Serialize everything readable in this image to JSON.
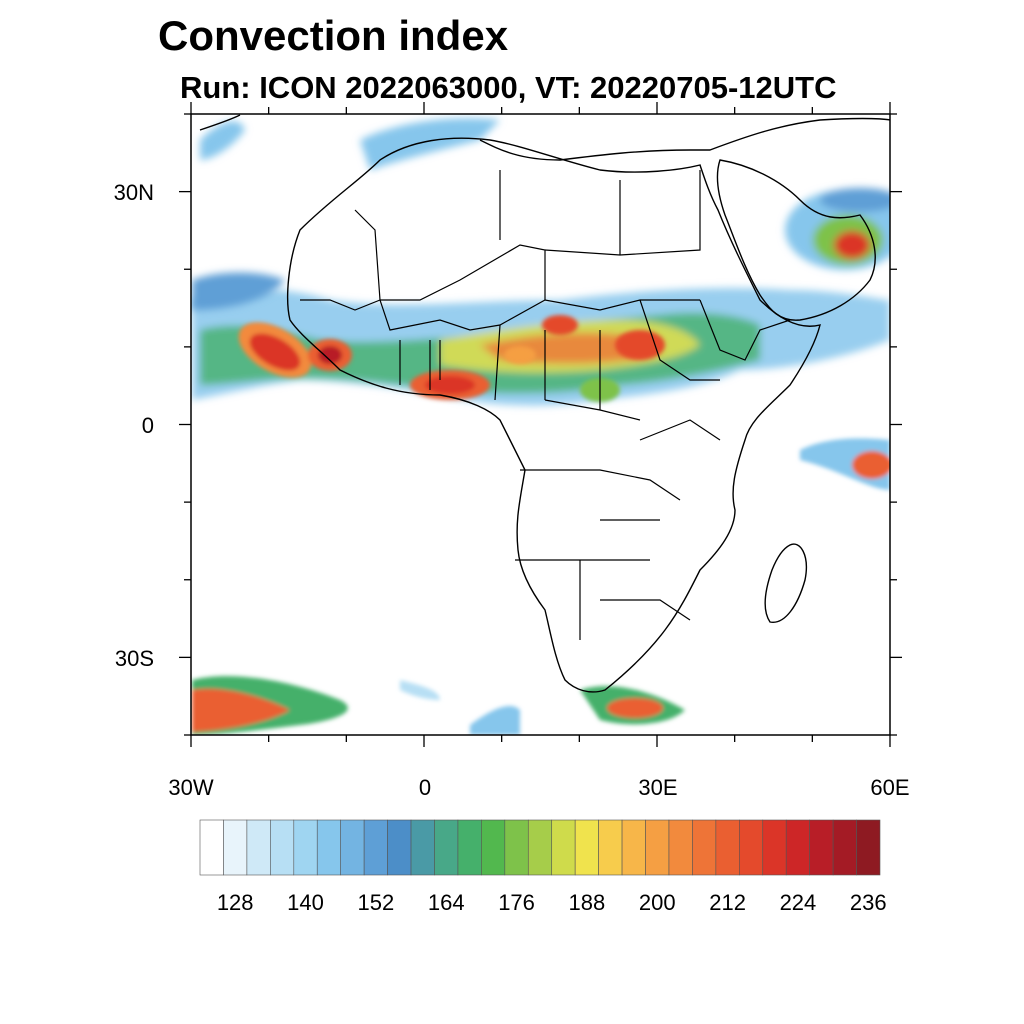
{
  "title": "Convection index",
  "subtitle": "Run: ICON 2022063000,  VT: 20220705-12UTC",
  "axes": {
    "y_labels": [
      "30N",
      "0",
      "30S"
    ],
    "x_labels": [
      "30W",
      "0",
      "30E",
      "60E"
    ],
    "lon_range": [
      -30,
      60
    ],
    "lat_range": [
      -40,
      40
    ]
  },
  "colorbar": {
    "labels": [
      "128",
      "140",
      "152",
      "164",
      "176",
      "188",
      "200",
      "212",
      "224",
      "236"
    ],
    "levels": [
      120,
      124,
      128,
      132,
      136,
      140,
      144,
      148,
      152,
      156,
      160,
      164,
      168,
      172,
      176,
      180,
      184,
      188,
      192,
      196,
      200,
      204,
      208,
      212,
      216,
      220,
      224,
      228,
      232,
      236,
      240
    ],
    "colors": [
      "#ffffff",
      "#e8f4fb",
      "#cfe9f7",
      "#b7dff4",
      "#9fd5f1",
      "#86c6ec",
      "#73b4e2",
      "#5e9fd6",
      "#4c8ec8",
      "#4a9aa6",
      "#48a888",
      "#45b06b",
      "#52b84e",
      "#7ec24a",
      "#a6cd4a",
      "#cfdb4b",
      "#f0e34d",
      "#f7cc4c",
      "#f7b649",
      "#f59f43",
      "#f28a3d",
      "#ee7437",
      "#ea5f31",
      "#e44a2c",
      "#db3528",
      "#cd2627",
      "#b81e27",
      "#a41b25",
      "#8e1a22"
    ]
  },
  "colors": {
    "frame": "#000000",
    "coast": "#000000"
  }
}
